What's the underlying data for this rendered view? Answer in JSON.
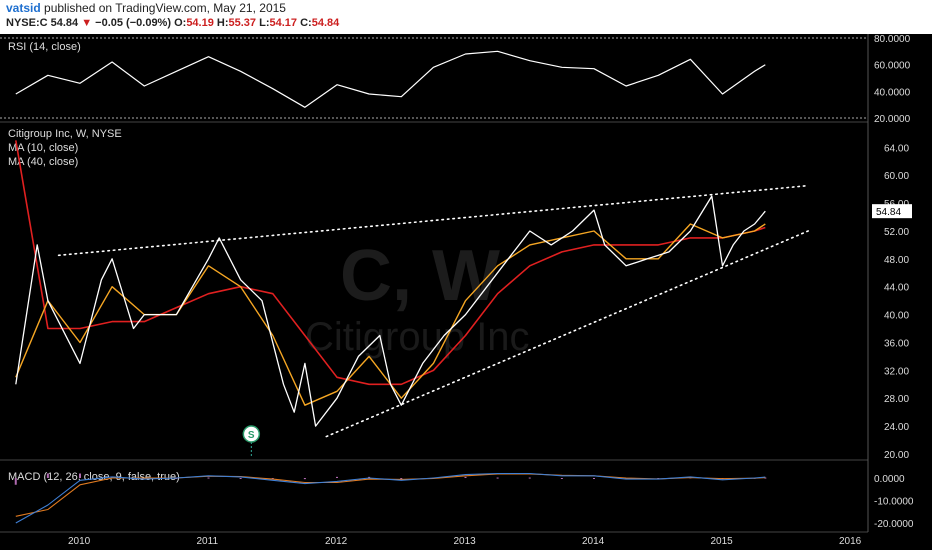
{
  "header": {
    "user": "vatsid",
    "published_text": "published on TradingView.com, May 21, 2015",
    "symbol": "NYSE:C",
    "last": "54.84",
    "change": "−0.05 (−0.09%)",
    "open_label": "O:",
    "open": "54.19",
    "high_label": "H:",
    "high": "55.37",
    "low_label": "L:",
    "low": "54.17",
    "close_label": "C:",
    "close": "54.84"
  },
  "watermark": {
    "symbol": "C, W",
    "name": "Citigroup Inc"
  },
  "colors": {
    "background": "#000000",
    "price": "#ffffff",
    "ma10": "#f5a623",
    "ma40": "#e02020",
    "macd": "#3f7fd4",
    "macd_signal": "#e07a20",
    "histogram": "#b06ab0",
    "trendline": "#ffffff"
  },
  "chart_data": [
    {
      "type": "line",
      "panel": "RSI",
      "title": "RSI (14, close)",
      "y_ticks": [
        "80.0000",
        "60.0000",
        "40.0000",
        "20.0000"
      ],
      "ylim": [
        20,
        80
      ],
      "reference_lines": [
        80,
        20
      ],
      "x": [
        "2009-07",
        "2009-10",
        "2010-01",
        "2010-04",
        "2010-07",
        "2010-10",
        "2011-01",
        "2011-04",
        "2011-07",
        "2011-10",
        "2012-01",
        "2012-04",
        "2012-07",
        "2012-10",
        "2013-01",
        "2013-04",
        "2013-07",
        "2013-10",
        "2014-01",
        "2014-04",
        "2014-07",
        "2014-10",
        "2015-01",
        "2015-04",
        "2015-05"
      ],
      "values": [
        38,
        52,
        46,
        62,
        44,
        55,
        66,
        55,
        42,
        28,
        45,
        38,
        36,
        58,
        68,
        70,
        63,
        58,
        57,
        44,
        52,
        64,
        38,
        55,
        60
      ]
    },
    {
      "type": "line",
      "panel": "Price",
      "title": "Citigroup Inc, W, NYSE",
      "last_value_label": "54.84",
      "y_ticks": [
        "64.00",
        "60.00",
        "56.00",
        "52.00",
        "48.00",
        "44.00",
        "40.00",
        "36.00",
        "32.00",
        "28.00",
        "24.00",
        "20.00"
      ],
      "ylim": [
        19,
        66
      ],
      "x_ticks": [
        "2010",
        "2011",
        "2012",
        "2013",
        "2014",
        "2015",
        "2016"
      ],
      "series": [
        {
          "name": "MA (10, close)",
          "x": [
            "2009-07",
            "2009-10",
            "2010-01",
            "2010-04",
            "2010-07",
            "2010-10",
            "2011-01",
            "2011-04",
            "2011-07",
            "2011-10",
            "2012-01",
            "2012-04",
            "2012-07",
            "2012-10",
            "2013-01",
            "2013-04",
            "2013-07",
            "2013-10",
            "2014-01",
            "2014-04",
            "2014-07",
            "2014-10",
            "2015-01",
            "2015-04",
            "2015-05"
          ],
          "values": [
            31,
            42,
            36,
            44,
            40,
            40,
            47,
            44,
            37,
            27,
            29,
            34,
            28,
            33,
            42,
            47,
            50,
            51,
            52,
            48,
            48,
            53,
            51,
            52,
            53
          ]
        },
        {
          "name": "MA (40, close)",
          "x": [
            "2009-07",
            "2009-10",
            "2010-01",
            "2010-04",
            "2010-07",
            "2010-10",
            "2011-01",
            "2011-04",
            "2011-07",
            "2011-10",
            "2012-01",
            "2012-04",
            "2012-07",
            "2012-10",
            "2013-01",
            "2013-04",
            "2013-07",
            "2013-10",
            "2014-01",
            "2014-04",
            "2014-07",
            "2014-10",
            "2015-01",
            "2015-04",
            "2015-05"
          ],
          "values": [
            65,
            38,
            38,
            39,
            39,
            41,
            43,
            44,
            43,
            37,
            31,
            30,
            30,
            32,
            37,
            43,
            47,
            49,
            50,
            50,
            50,
            51,
            51,
            52,
            52.5
          ]
        },
        {
          "name": "Price",
          "x": [
            "2009-07",
            "2009-09",
            "2009-10",
            "2010-01",
            "2010-03",
            "2010-04",
            "2010-06",
            "2010-07",
            "2010-10",
            "2011-01",
            "2011-02",
            "2011-04",
            "2011-06",
            "2011-08",
            "2011-09",
            "2011-10",
            "2011-11",
            "2012-01",
            "2012-03",
            "2012-05",
            "2012-06",
            "2012-07",
            "2012-09",
            "2012-11",
            "2013-01",
            "2013-03",
            "2013-05",
            "2013-07",
            "2013-09",
            "2013-11",
            "2014-01",
            "2014-02",
            "2014-04",
            "2014-06",
            "2014-08",
            "2014-10",
            "2014-12",
            "2015-01",
            "2015-02",
            "2015-03",
            "2015-04",
            "2015-05"
          ],
          "values": [
            30,
            50,
            42,
            33,
            45,
            48,
            38,
            40,
            40,
            48,
            51,
            45,
            42,
            30,
            26,
            33,
            24,
            28,
            34,
            37,
            30,
            27,
            33,
            37,
            40,
            44,
            48,
            52,
            50,
            52,
            55,
            50,
            47,
            48,
            49,
            52,
            57,
            47,
            50,
            52,
            53,
            54.84
          ]
        }
      ],
      "trendlines": [
        {
          "name": "upper",
          "from": [
            "2009-11",
            48.5
          ],
          "to": [
            "2015-09",
            58.5
          ]
        },
        {
          "name": "lower",
          "from": [
            "2011-12",
            22.5
          ],
          "to": [
            "2015-09",
            52
          ]
        }
      ],
      "marker": {
        "label": "S",
        "x": "2011-05"
      }
    },
    {
      "type": "line",
      "panel": "MACD",
      "title": "MACD (12, 26, close, 9, false, true)",
      "y_ticks": [
        "0.0000",
        "-10.0000",
        "-20.0000"
      ],
      "ylim": [
        -20,
        3
      ],
      "x": [
        "2009-07",
        "2009-10",
        "2010-01",
        "2010-04",
        "2010-07",
        "2010-10",
        "2011-01",
        "2011-04",
        "2011-07",
        "2011-10",
        "2012-01",
        "2012-04",
        "2012-07",
        "2012-10",
        "2013-01",
        "2013-04",
        "2013-07",
        "2013-10",
        "2014-01",
        "2014-04",
        "2014-07",
        "2014-10",
        "2015-01",
        "2015-04",
        "2015-05"
      ],
      "series": [
        {
          "name": "MACD",
          "values": [
            -20,
            -12,
            -1,
            0.5,
            -0.5,
            0,
            1,
            0.5,
            -1,
            -2.5,
            -1.5,
            0,
            -1,
            0,
            1.5,
            2,
            2,
            1,
            1,
            -0.5,
            -0.5,
            0.5,
            -0.8,
            0,
            0.4
          ]
        },
        {
          "name": "Signal",
          "values": [
            -17,
            -14,
            -3,
            0,
            0,
            0,
            0.8,
            0.6,
            -0.5,
            -2,
            -2,
            -0.5,
            -0.6,
            -0.2,
            1,
            1.8,
            1.8,
            1.2,
            1,
            0,
            -0.4,
            0.2,
            -0.3,
            -0.1,
            0.2
          ]
        }
      ]
    }
  ]
}
